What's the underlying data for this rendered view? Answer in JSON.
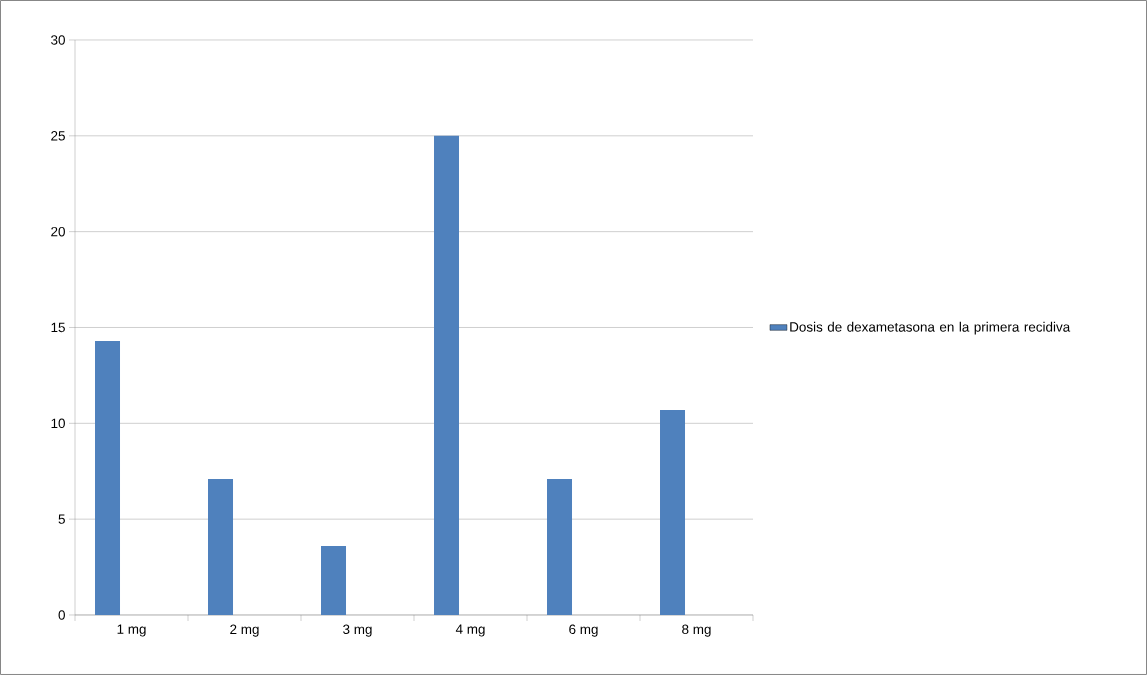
{
  "chart_data": {
    "type": "bar",
    "categories": [
      "1 mg",
      "2 mg",
      "3 mg",
      "4 mg",
      "6 mg",
      "8 mg"
    ],
    "series": [
      {
        "name": "Dosis de dexametasona en la primera recidiva",
        "color": "#4f81bd",
        "values": [
          14.3,
          7.1,
          3.6,
          25,
          7.1,
          10.7
        ]
      }
    ],
    "ylim": [
      0,
      30
    ],
    "yticks": [
      0,
      5,
      10,
      15,
      20,
      25,
      30
    ],
    "grid": "y",
    "legend": "right"
  }
}
